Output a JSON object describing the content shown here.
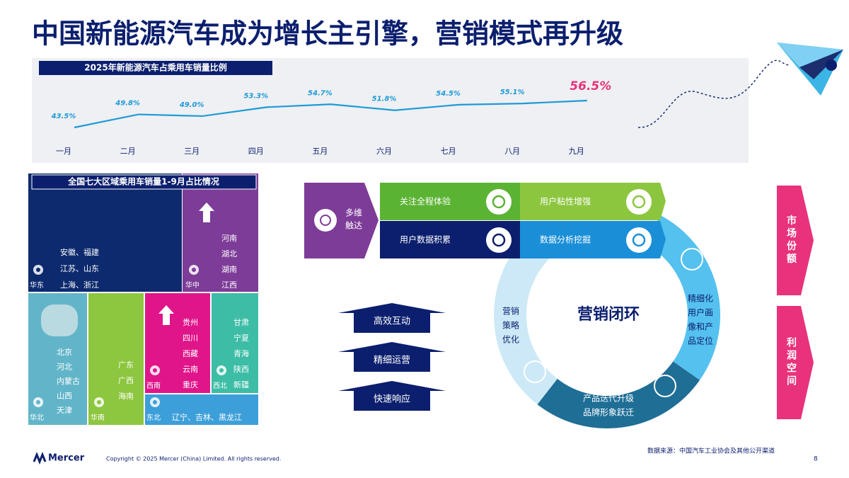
{
  "header": {
    "title": "中国新能源汽车成为增长主引擎，营销模式再升级"
  },
  "chart_data": {
    "type": "line",
    "title": "2025年新能源汽车占乘用车销量比例",
    "categories": [
      "一月",
      "二月",
      "三月",
      "四月",
      "五月",
      "六月",
      "七月",
      "八月",
      "九月"
    ],
    "values": [
      43.5,
      49.8,
      49.0,
      53.3,
      54.7,
      51.8,
      54.5,
      55.1,
      56.5
    ],
    "value_labels": [
      "43.5%",
      "49.8%",
      "49.0%",
      "53.3%",
      "54.7%",
      "51.8%",
      "54.5%",
      "55.1%",
      "56.5%"
    ],
    "color": "#1f9ad6"
  },
  "treemap": {
    "title": "全国七大区域乘用车销量1-9月占比情况",
    "regions": [
      {
        "name": "华东",
        "provinces": [
          "安徽、福建",
          "江苏、山东",
          "上海、浙江"
        ]
      },
      {
        "name": "华中",
        "provinces": [
          "河南",
          "湖北",
          "湖南",
          "江西"
        ]
      },
      {
        "name": "华北",
        "provinces": [
          "北京",
          "河北",
          "内蒙古",
          "山西",
          "天津"
        ]
      },
      {
        "name": "华南",
        "provinces": [
          "广东",
          "广西",
          "海南"
        ]
      },
      {
        "name": "西南",
        "provinces": [
          "贵州",
          "四川",
          "西藏",
          "云南",
          "重庆"
        ]
      },
      {
        "name": "西北",
        "provinces": [
          "甘肃",
          "宁夏",
          "青海",
          "陕西",
          "新疆"
        ]
      },
      {
        "name": "东北",
        "provinces": [
          "辽宁、吉林、黑龙江"
        ]
      }
    ]
  },
  "diagram": {
    "entry": [
      "多维",
      "触达"
    ],
    "boxes": [
      "关注全程体验",
      "用户粘性增强",
      "用户数据积累",
      "数据分析挖掘"
    ],
    "center": "营销闭环",
    "ring": [
      [
        "精细化",
        "用户画",
        "像和产",
        "品定位"
      ],
      [
        "产品迭代升级",
        "品牌形象跃迁"
      ],
      [
        "营销",
        "策略",
        "优化"
      ]
    ],
    "arrows": [
      "高效互动",
      "精细运营",
      "快速响应"
    ],
    "outcomes": [
      "市场份额",
      "利润空间"
    ]
  },
  "footer": {
    "logo": "Mercer",
    "copyright": "Copyright © 2025 Mercer (China) Limited. All rights reserved.",
    "source": "数据来源：中国汽车工业协会及其他公开渠道",
    "page": "8"
  }
}
